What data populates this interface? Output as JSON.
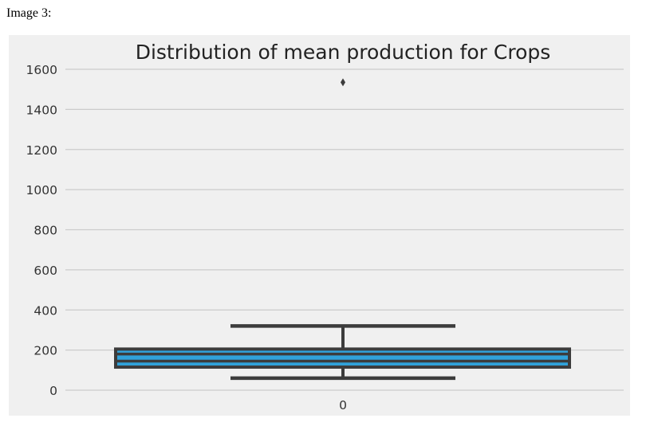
{
  "caption": "Image 3:",
  "chart_data": {
    "type": "box",
    "title": "Distribution of mean production for Crops",
    "xlabel": "",
    "ylabel": "",
    "categories": [
      "0"
    ],
    "ylim": [
      -80,
      1680
    ],
    "yticks": [
      0,
      200,
      400,
      600,
      800,
      1000,
      1200,
      1400,
      1600
    ],
    "grid": true,
    "box": {
      "whisker_low": 60,
      "q1": 115,
      "median": 145,
      "mean_line": 180,
      "q3": 205,
      "whisker_high": 320,
      "outliers": [
        1535
      ]
    },
    "colors": {
      "background": "#f0f0f0",
      "grid": "#cbcbcb",
      "box_fill": "#30a2da",
      "box_edge": "#3c3c3c"
    }
  }
}
